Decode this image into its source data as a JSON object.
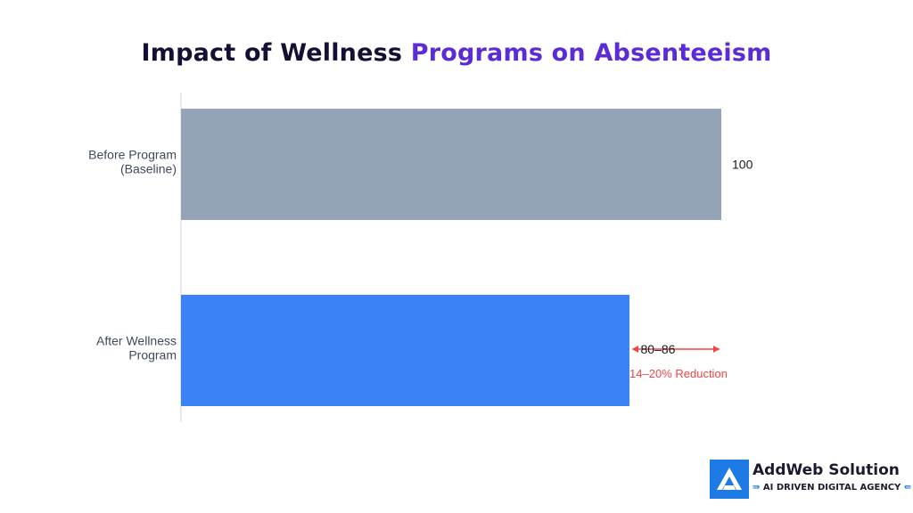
{
  "title_part1": "Impact of Wellness ",
  "title_part2": "Programs on Absenteeism",
  "chart_data": {
    "type": "bar",
    "orientation": "horizontal",
    "title": "Impact of Wellness Programs on Absenteeism",
    "categories": [
      "Before Program (Baseline)",
      "After Wellness Program"
    ],
    "category_lines": [
      [
        "Before Program",
        "(Baseline)"
      ],
      [
        "After Wellness",
        "Program"
      ]
    ],
    "values": [
      100,
      83
    ],
    "data_labels": [
      "100",
      "80–86"
    ],
    "colors": [
      "#94a3b8",
      "#3b82f6"
    ],
    "xlim": [
      0,
      100
    ],
    "annotation": {
      "text": "14–20% Reduction",
      "from_value": 83,
      "to_value": 100,
      "color": "#ef4444"
    },
    "grid": false,
    "legend": "none"
  },
  "brand": {
    "name": "AddWeb Solution",
    "tagline": "AI DRIVEN DIGITAL AGENCY",
    "color": "#1e7be6"
  }
}
